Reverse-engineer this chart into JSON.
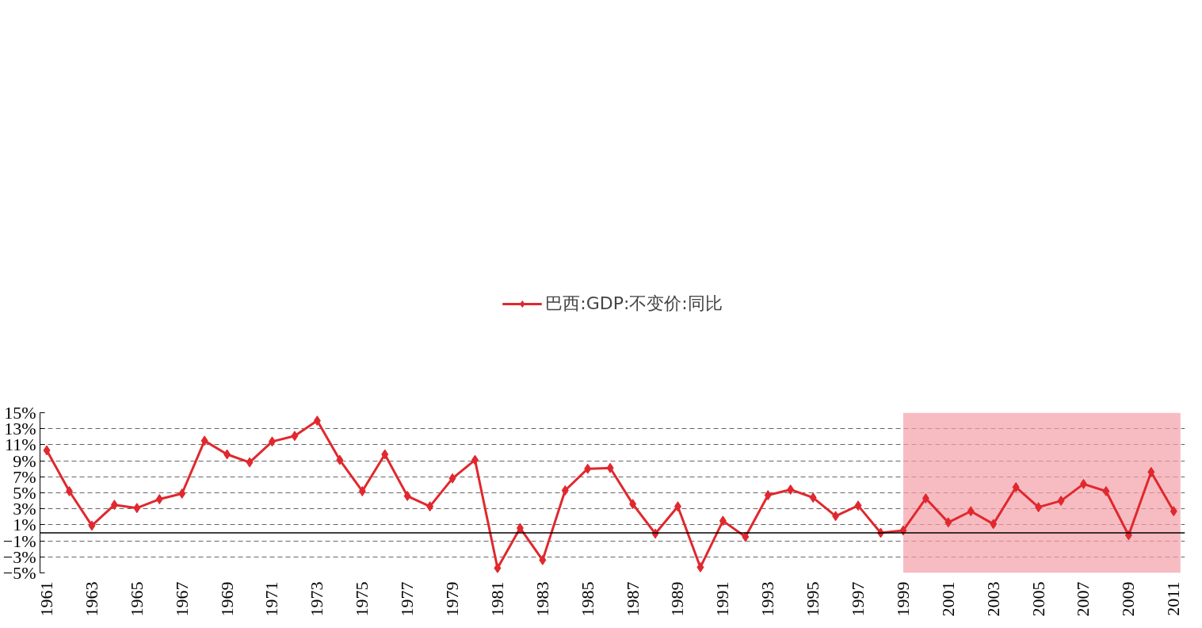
{
  "chart_data": {
    "type": "line",
    "categories": [
      "1961",
      null,
      "1963",
      null,
      "1965",
      null,
      "1967",
      null,
      "1969",
      null,
      "1971",
      null,
      "1973",
      null,
      "1975",
      null,
      "1977",
      null,
      "1979",
      null,
      "1981",
      null,
      "1983",
      null,
      "1985",
      null,
      "1987",
      null,
      "1989",
      null,
      "1991",
      null,
      "1993",
      null,
      "1995",
      null,
      "1997",
      null,
      "1999",
      null,
      "2001",
      null,
      "2003",
      null,
      "2005",
      null,
      "2007",
      null,
      "2009",
      null,
      "2011"
    ],
    "series": [
      {
        "name": "巴西:GDP:不变价:同比",
        "color": "#e0282e",
        "values": [
          10.3,
          5.2,
          0.9,
          3.5,
          3.1,
          4.2,
          4.9,
          11.5,
          9.8,
          8.8,
          11.4,
          12.1,
          14.0,
          9.1,
          5.2,
          9.8,
          4.6,
          3.3,
          6.8,
          9.1,
          -4.4,
          0.6,
          -3.4,
          5.3,
          8.0,
          8.1,
          3.6,
          -0.1,
          3.3,
          -4.3,
          1.5,
          -0.5,
          4.7,
          5.4,
          4.4,
          2.1,
          3.4,
          0.0,
          0.3,
          4.3,
          1.3,
          2.7,
          1.1,
          5.7,
          3.2,
          4.0,
          6.1,
          5.2,
          -0.3,
          7.6,
          2.7
        ]
      }
    ],
    "ylim": [
      -5,
      15
    ],
    "yticks": [
      {
        "value": -5,
        "label": "−5%"
      },
      {
        "value": -3,
        "label": "−3%"
      },
      {
        "value": -1,
        "label": "−1%"
      },
      {
        "value": 1,
        "label": "1%"
      },
      {
        "value": 3,
        "label": "3%"
      },
      {
        "value": 5,
        "label": "5%"
      },
      {
        "value": 7,
        "label": "7%"
      },
      {
        "value": 9,
        "label": "9%"
      },
      {
        "value": 11,
        "label": "11%"
      },
      {
        "value": 13,
        "label": "13%"
      },
      {
        "value": 15,
        "label": "15%"
      }
    ],
    "grid": "y",
    "legend": "top",
    "marker": "diamond",
    "line_style": "solid",
    "ref_lines": [
      {
        "axis": "y",
        "value": 0,
        "color": "#000000"
      }
    ],
    "bands": [
      {
        "axis": "x",
        "from": "1999",
        "to": "2011",
        "color": "#f4a0a8"
      }
    ]
  }
}
